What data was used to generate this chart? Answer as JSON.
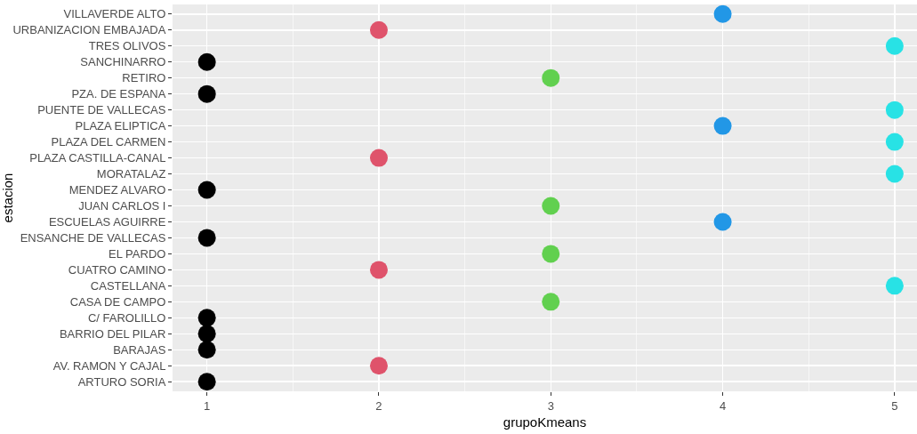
{
  "chart_data": {
    "type": "scatter",
    "orientation": "horizontal",
    "xlabel": "grupoKmeans",
    "ylabel": "estacion",
    "categories": [
      "VILLAVERDE ALTO",
      "URBANIZACION EMBAJADA",
      "TRES OLIVOS",
      "SANCHINARRO",
      "RETIRO",
      "PZA. DE ESPANA",
      "PUENTE DE VALLECAS",
      "PLAZA ELIPTICA",
      "PLAZA DEL CARMEN",
      "PLAZA CASTILLA-CANAL",
      "MORATALAZ",
      "MENDEZ ALVARO",
      "JUAN CARLOS I",
      "ESCUELAS AGUIRRE",
      "ENSANCHE DE VALLECAS",
      "EL PARDO",
      "CUATRO CAMINO",
      "CASTELLANA",
      "CASA DE CAMPO",
      "C/ FAROLILLO",
      "BARRIO DEL PILAR",
      "BARAJAS",
      "AV. RAMON Y CAJAL",
      "ARTURO SORIA"
    ],
    "values": [
      4,
      2,
      5,
      1,
      3,
      1,
      5,
      4,
      5,
      2,
      5,
      1,
      3,
      4,
      1,
      3,
      2,
      5,
      3,
      1,
      1,
      1,
      2,
      1
    ],
    "colors": [
      "#2297e6",
      "#df536b",
      "#28e2e5",
      "#000000",
      "#61d04f",
      "#000000",
      "#28e2e5",
      "#2297e6",
      "#28e2e5",
      "#df536b",
      "#28e2e5",
      "#000000",
      "#61d04f",
      "#2297e6",
      "#000000",
      "#61d04f",
      "#df536b",
      "#28e2e5",
      "#61d04f",
      "#000000",
      "#000000",
      "#000000",
      "#df536b",
      "#000000"
    ],
    "xlim": [
      0.8,
      5.13
    ],
    "xticks": [
      1,
      2,
      3,
      4,
      5
    ],
    "grid": true,
    "marker": "circle"
  }
}
